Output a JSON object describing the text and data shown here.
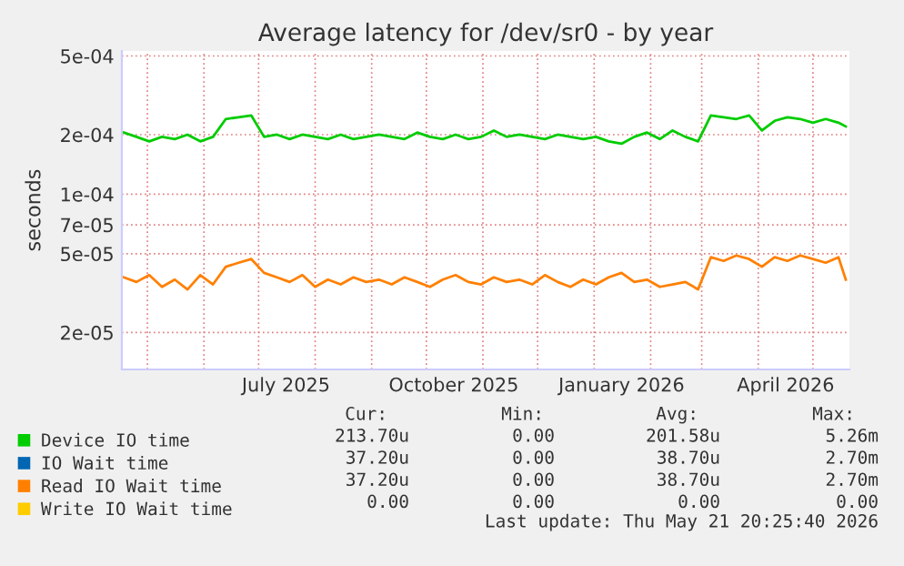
{
  "chart_data": {
    "type": "line",
    "title": "Average latency for /dev/sr0 - by year",
    "ylabel": "seconds",
    "x": [
      "2025-04-18",
      "2025-04-25",
      "2025-05-02",
      "2025-05-09",
      "2025-05-16",
      "2025-05-23",
      "2025-05-30",
      "2025-06-06",
      "2025-06-13",
      "2025-06-20",
      "2025-06-27",
      "2025-07-04",
      "2025-07-11",
      "2025-07-18",
      "2025-07-25",
      "2025-08-01",
      "2025-08-08",
      "2025-08-15",
      "2025-08-22",
      "2025-08-29",
      "2025-09-05",
      "2025-09-12",
      "2025-09-19",
      "2025-09-26",
      "2025-10-03",
      "2025-10-10",
      "2025-10-17",
      "2025-10-24",
      "2025-10-31",
      "2025-11-07",
      "2025-11-14",
      "2025-11-21",
      "2025-11-28",
      "2025-12-05",
      "2025-12-12",
      "2025-12-19",
      "2025-12-26",
      "2026-01-02",
      "2026-01-09",
      "2026-01-16",
      "2026-01-23",
      "2026-01-30",
      "2026-02-06",
      "2026-02-13",
      "2026-02-20",
      "2026-02-27",
      "2026-03-06",
      "2026-03-13",
      "2026-03-20",
      "2026-03-27",
      "2026-04-03",
      "2026-04-10",
      "2026-04-17",
      "2026-04-24",
      "2026-05-01",
      "2026-05-08",
      "2026-05-15",
      "2026-05-19"
    ],
    "series": [
      {
        "name": "Device IO time",
        "color": "#00cc00",
        "values": [
          0.000205,
          0.000195,
          0.000185,
          0.000195,
          0.00019,
          0.0002,
          0.000185,
          0.000195,
          0.00024,
          0.000245,
          0.00025,
          0.000195,
          0.0002,
          0.00019,
          0.0002,
          0.000195,
          0.00019,
          0.0002,
          0.00019,
          0.000195,
          0.0002,
          0.000195,
          0.00019,
          0.000205,
          0.000195,
          0.00019,
          0.0002,
          0.00019,
          0.000195,
          0.00021,
          0.000195,
          0.0002,
          0.000195,
          0.00019,
          0.0002,
          0.000195,
          0.00019,
          0.000195,
          0.000185,
          0.00018,
          0.000195,
          0.000205,
          0.00019,
          0.00021,
          0.000195,
          0.000185,
          0.00025,
          0.000245,
          0.00024,
          0.00025,
          0.00021,
          0.000235,
          0.000245,
          0.00024,
          0.00023,
          0.00024,
          0.00023,
          0.00022
        ]
      },
      {
        "name": "IO Wait time",
        "color": "#0066b3",
        "values": [
          null,
          null,
          null,
          null,
          null,
          null,
          null,
          null,
          null,
          null,
          null,
          null,
          null,
          null,
          null,
          null,
          null,
          null,
          null,
          null,
          null,
          null,
          null,
          null,
          null,
          null,
          null,
          null,
          null,
          null,
          null,
          null,
          null,
          null,
          null,
          null,
          null,
          null,
          null,
          null,
          null,
          null,
          null,
          null,
          null,
          null,
          null,
          null,
          null,
          null,
          null,
          null,
          null,
          null,
          null,
          null,
          null,
          null
        ]
      },
      {
        "name": "Read IO Wait time",
        "color": "#ff8000",
        "values": [
          3.8e-05,
          3.6e-05,
          3.9e-05,
          3.4e-05,
          3.7e-05,
          3.3e-05,
          3.9e-05,
          3.5e-05,
          4.3e-05,
          4.5e-05,
          4.7e-05,
          4e-05,
          3.8e-05,
          3.6e-05,
          3.9e-05,
          3.4e-05,
          3.7e-05,
          3.5e-05,
          3.8e-05,
          3.6e-05,
          3.7e-05,
          3.5e-05,
          3.8e-05,
          3.6e-05,
          3.4e-05,
          3.7e-05,
          3.9e-05,
          3.6e-05,
          3.5e-05,
          3.8e-05,
          3.6e-05,
          3.7e-05,
          3.5e-05,
          3.9e-05,
          3.6e-05,
          3.4e-05,
          3.7e-05,
          3.5e-05,
          3.8e-05,
          4e-05,
          3.6e-05,
          3.7e-05,
          3.4e-05,
          3.5e-05,
          3.6e-05,
          3.3e-05,
          4.8e-05,
          4.6e-05,
          4.9e-05,
          4.7e-05,
          4.3e-05,
          4.8e-05,
          4.6e-05,
          4.9e-05,
          4.7e-05,
          4.5e-05,
          4.8e-05,
          3.7e-05
        ]
      },
      {
        "name": "Write IO Wait time",
        "color": "#ffcc00",
        "values": [
          null,
          null,
          null,
          null,
          null,
          null,
          null,
          null,
          null,
          null,
          null,
          null,
          null,
          null,
          null,
          null,
          null,
          null,
          null,
          null,
          null,
          null,
          null,
          null,
          null,
          null,
          null,
          null,
          null,
          null,
          null,
          null,
          null,
          null,
          null,
          null,
          null,
          null,
          null,
          null,
          null,
          null,
          null,
          null,
          null,
          null,
          null,
          null,
          null,
          null,
          null,
          null,
          null,
          null,
          null,
          null,
          null,
          null
        ]
      }
    ],
    "log": "y",
    "ylim": [
      1.3e-05,
      0.00053
    ],
    "yticks": [
      {
        "value": 2e-05,
        "label": "2e-05"
      },
      {
        "value": 5e-05,
        "label": "5e-05"
      },
      {
        "value": 7e-05,
        "label": "7e-05"
      },
      {
        "value": 0.0001,
        "label": "1e-04"
      },
      {
        "value": 0.0002,
        "label": "2e-04"
      },
      {
        "value": 0.0005,
        "label": "5e-04"
      }
    ],
    "xlim": [
      "2025-04-17",
      "2026-05-21"
    ],
    "xticks": [
      {
        "value": "2025-05-01",
        "label": null
      },
      {
        "value": "2025-06-01",
        "label": null
      },
      {
        "value": "2025-07-01",
        "label": null
      },
      {
        "value": "2025-08-01",
        "label": null
      },
      {
        "value": "2025-09-01",
        "label": null
      },
      {
        "value": "2025-10-01",
        "label": null
      },
      {
        "value": "2025-11-01",
        "label": null
      },
      {
        "value": "2025-12-01",
        "label": null
      },
      {
        "value": "2026-01-01",
        "label": null
      },
      {
        "value": "2026-02-01",
        "label": null
      },
      {
        "value": "2026-03-01",
        "label": null
      },
      {
        "value": "2026-04-01",
        "label": null
      },
      {
        "value": "2026-05-01",
        "label": null
      },
      {
        "value": "2025-07-16",
        "label": "July 2025"
      },
      {
        "value": "2025-10-16",
        "label": "October 2025"
      },
      {
        "value": "2026-01-16",
        "label": "January 2026"
      },
      {
        "value": "2026-04-16",
        "label": "April 2026"
      }
    ],
    "grid": true,
    "legend": "bottom",
    "marker": "none",
    "line_style": "solid",
    "annotations": [
      "Cur:",
      "Min:",
      "Avg:",
      "Max:",
      "213.70u",
      "0.00",
      "201.58u",
      "5.26m",
      "37.20u",
      "0.00",
      "38.70u",
      "2.70m",
      "37.20u",
      "0.00",
      "38.70u",
      "2.70m",
      "0.00",
      "0.00",
      "0.00",
      "0.00",
      "Last update: Thu May 21 20:25:40 2026"
    ]
  }
}
